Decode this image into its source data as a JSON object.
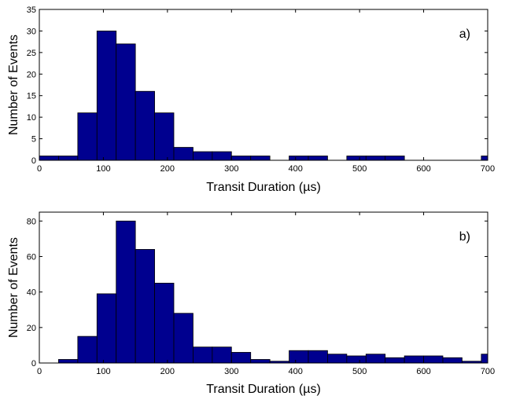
{
  "colors": {
    "bar_fill": "#00008f",
    "bar_edge": "#000000",
    "axes": "#000000",
    "background": "#ffffff"
  },
  "chart_data": [
    {
      "type": "bar",
      "panel_label": "a)",
      "xlabel": "Transit Duration (µs)",
      "ylabel": "Number of Events",
      "xlim": [
        0,
        700
      ],
      "ylim": [
        0,
        35
      ],
      "xticks": [
        0,
        100,
        200,
        300,
        400,
        500,
        600,
        700
      ],
      "yticks": [
        0,
        5,
        10,
        15,
        20,
        25,
        30,
        35
      ],
      "bin_width": 30,
      "bin_starts": [
        0,
        30,
        60,
        90,
        120,
        150,
        180,
        210,
        240,
        270,
        300,
        330,
        360,
        390,
        420,
        450,
        480,
        510,
        540,
        570,
        600,
        630,
        660,
        690
      ],
      "values": [
        1,
        1,
        11,
        30,
        27,
        16,
        11,
        3,
        2,
        2,
        1,
        1,
        0,
        1,
        1,
        0,
        1,
        1,
        1,
        0,
        0,
        0,
        0,
        1
      ]
    },
    {
      "type": "bar",
      "panel_label": "b)",
      "xlabel": "Transit Duration (µs)",
      "ylabel": "Number of Events",
      "xlim": [
        0,
        700
      ],
      "ylim": [
        0,
        85
      ],
      "xticks": [
        0,
        100,
        200,
        300,
        400,
        500,
        600,
        700
      ],
      "yticks": [
        0,
        20,
        40,
        60,
        80
      ],
      "bin_width": 30,
      "bin_starts": [
        30,
        60,
        90,
        120,
        150,
        180,
        210,
        240,
        270,
        300,
        330,
        360,
        390,
        420,
        450,
        480,
        510,
        540,
        570,
        600,
        630,
        660,
        690
      ],
      "values": [
        2,
        15,
        39,
        80,
        64,
        45,
        28,
        9,
        9,
        6,
        2,
        1,
        7,
        7,
        5,
        4,
        5,
        3,
        4,
        4,
        3,
        1,
        5
      ]
    }
  ]
}
